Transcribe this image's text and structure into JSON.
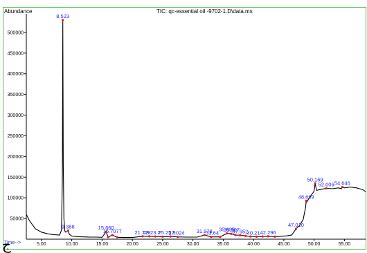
{
  "title": "TIC: qc-essential oil -9702-1.D\\data.ms",
  "corner_glyph": "ج",
  "chart_data": {
    "type": "line",
    "title": "TIC: qc-essential oil -9702-1.D\\data.ms",
    "ylabel": "Abundance",
    "xlabel": "Time-->",
    "xlim": [
      2.5,
      58.5
    ],
    "ylim": [
      0,
      535000
    ],
    "x_ticks": [
      5,
      10,
      15,
      20,
      25,
      30,
      35,
      40,
      45,
      50,
      55
    ],
    "x_tick_labels": [
      "5.00",
      "10.00",
      "15.00",
      "20.00",
      "25.00",
      "30.00",
      "35.00",
      "40.00",
      "45.00",
      "50.00",
      "55.00"
    ],
    "y_ticks": [
      50000,
      100000,
      150000,
      200000,
      250000,
      300000,
      350000,
      400000,
      450000,
      500000
    ],
    "y_tick_labels": [
      "50000",
      "100000",
      "150000",
      "200000",
      "250000",
      "300000",
      "350000",
      "400000",
      "450000",
      "500000"
    ],
    "grid": false,
    "series": [
      {
        "x": [
          2.5,
          3.0,
          4.0,
          5.0,
          6.0,
          7.0,
          8.0,
          8.3,
          8.45,
          8.523,
          8.6,
          8.7,
          8.85,
          9.0,
          9.2,
          9.388,
          9.6,
          10.0,
          11.0,
          12.0,
          13.0,
          14.0,
          15.0,
          15.66,
          16.0,
          16.7,
          17.5,
          18.5,
          20.0,
          21.7,
          22.8,
          23.8,
          25.0,
          26.3,
          27.5,
          29.0,
          30.7,
          31.9,
          33.0,
          34.5,
          35.6,
          36.3,
          37.0,
          37.8,
          38.7,
          39.5,
          40.5,
          41.5,
          42.4,
          43.5,
          44.5,
          45.5,
          46.3,
          47.01,
          47.6,
          48.2,
          48.6,
          48.699,
          48.8,
          49.2,
          49.6,
          50.0,
          50.169,
          50.4,
          51.0,
          52.006,
          53.0,
          54.0,
          54.5,
          54.646,
          55.0,
          56.0,
          57.0,
          58.0,
          58.5
        ],
        "y": [
          60000,
          45000,
          25000,
          17000,
          13000,
          11000,
          10000,
          22000,
          150000,
          530000,
          180000,
          50000,
          20000,
          17000,
          18000,
          21000,
          12000,
          7500,
          6000,
          5500,
          5000,
          5000,
          4500,
          18000,
          5000,
          10000,
          4500,
          4000,
          4000,
          7000,
          7000,
          6500,
          6000,
          6500,
          5500,
          5000,
          5000,
          10000,
          5500,
          5500,
          14000,
          13000,
          10000,
          9500,
          8000,
          6500,
          6000,
          6500,
          7000,
          6000,
          7000,
          8000,
          10000,
          25000,
          33000,
          48000,
          78000,
          93000,
          90000,
          100000,
          108000,
          116000,
          135000,
          118000,
          120000,
          123000,
          122000,
          124000,
          122000,
          126000,
          124000,
          126000,
          124000,
          120000,
          115000
        ]
      }
    ],
    "peak_labels": [
      {
        "x": 8.523,
        "y": 530000,
        "text": "8.523"
      },
      {
        "x": 9.388,
        "y": 21000,
        "text": "9.388"
      },
      {
        "x": 15.66,
        "y": 18000,
        "text": "15.660"
      },
      {
        "x": 16.7,
        "y": 10000,
        "text": "16.7077"
      },
      {
        "x": 21.7,
        "y": 7000,
        "text": "21.729"
      },
      {
        "x": 23.2,
        "y": 7000,
        "text": "23.23.2"
      },
      {
        "x": 25.7,
        "y": 6500,
        "text": "25.25.9"
      },
      {
        "x": 27.3,
        "y": 6000,
        "text": "27.024"
      },
      {
        "x": 31.9,
        "y": 10000,
        "text": "31.978"
      },
      {
        "x": 33.2,
        "y": 5500,
        "text": "33.64"
      },
      {
        "x": 35.6,
        "y": 14000,
        "text": "35.695"
      },
      {
        "x": 36.4,
        "y": 13000,
        "text": "35.997"
      },
      {
        "x": 37.8,
        "y": 9500,
        "text": "37.952"
      },
      {
        "x": 40.0,
        "y": 6000,
        "text": "40.21"
      },
      {
        "x": 42.4,
        "y": 7000,
        "text": "42.296"
      },
      {
        "x": 47.01,
        "y": 25000,
        "text": "47.010"
      },
      {
        "x": 48.699,
        "y": 93000,
        "text": "48.699"
      },
      {
        "x": 50.169,
        "y": 135000,
        "text": "50.169"
      },
      {
        "x": 52.006,
        "y": 123000,
        "text": "52.006"
      },
      {
        "x": 54.646,
        "y": 126000,
        "text": "54.646"
      }
    ],
    "peak_markers": [
      8.523,
      9.388,
      15.66,
      16.0,
      16.7,
      17.5,
      21.7,
      22.8,
      23.8,
      25.0,
      26.3,
      27.5,
      31.9,
      33.0,
      34.5,
      35.6,
      36.3,
      37.0,
      37.8,
      38.7,
      39.5,
      40.5,
      41.5,
      42.4,
      43.5,
      47.01,
      48.699,
      50.169,
      52.006,
      54.646
    ]
  }
}
